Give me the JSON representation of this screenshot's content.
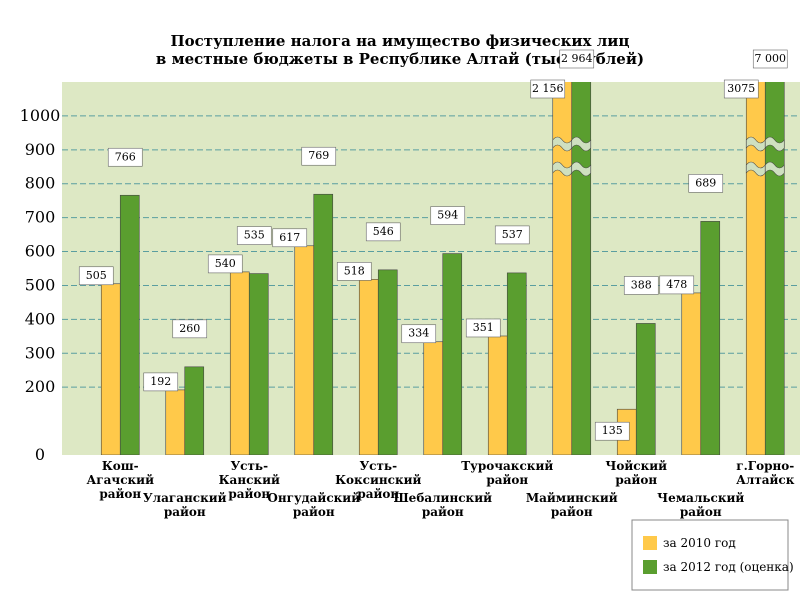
{
  "chart_data": {
    "type": "bar",
    "title": "Поступление налога на имущество физических лиц\nв местные бюджеты в Республике Алтай (тыс. рублей)",
    "categories": [
      "Кош-\nАгачский\nрайон",
      "Улаганский\nрайон",
      "Усть-\nКанский\nрайон",
      "Онгудайский\nрайон",
      "Усть-\nКоксинский\nрайон",
      "Шебалинский\nрайон",
      "Турочакский\nрайон",
      "Майминский\nрайон",
      "Чойский\nрайон",
      "Чемальский\nрайон",
      "г.Горно-\nАлтайск"
    ],
    "series": [
      {
        "name": "за 2010 год",
        "color": "#ffc94a",
        "values": [
          505,
          192,
          540,
          617,
          518,
          334,
          351,
          2156,
          135,
          478,
          3075
        ],
        "value_labels": [
          "505",
          "192",
          "540",
          "617",
          "518",
          "334",
          "351",
          "2 156",
          "135",
          "478",
          "3075"
        ]
      },
      {
        "name": "за 2012 год (оценка)",
        "color": "#5a9e2f",
        "values": [
          766,
          260,
          535,
          769,
          546,
          594,
          537,
          2964,
          388,
          689,
          7000
        ],
        "value_labels": [
          "766",
          "260",
          "535",
          "769",
          "546",
          "594",
          "537",
          "2 964",
          "388",
          "689",
          "7 000"
        ]
      }
    ],
    "ylim": [
      0,
      1100
    ],
    "yticks": [
      0,
      200,
      300,
      400,
      500,
      600,
      700,
      800,
      900,
      1000
    ],
    "grid": true
  }
}
